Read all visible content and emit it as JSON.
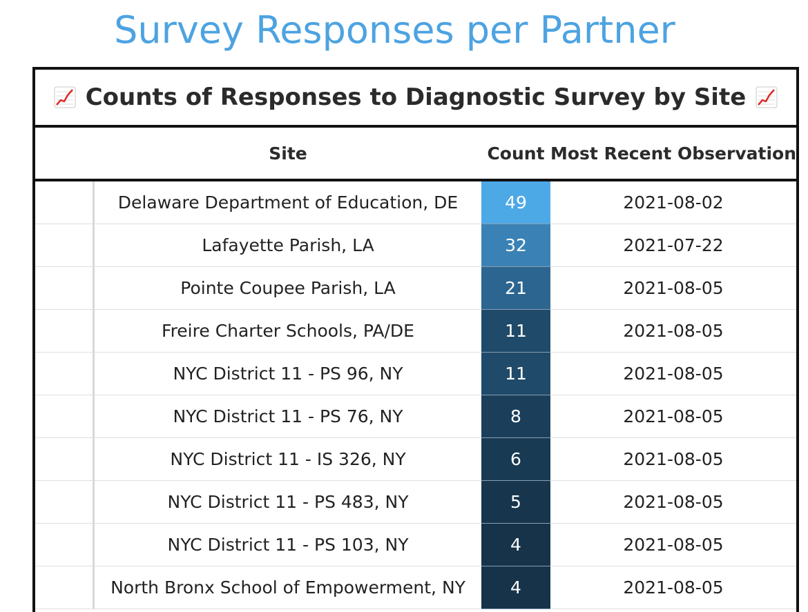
{
  "page": {
    "title": "Survey Responses per Partner"
  },
  "table": {
    "caption": "Counts of Responses to Diagnostic Survey by Site",
    "caption_icon": "chart-increasing-icon",
    "headers": {
      "site": "Site",
      "count": "Count",
      "date": "Most Recent Observation"
    },
    "rows": [
      {
        "site": "Delaware Department of Education, DE",
        "count": "49",
        "date": "2021-08-02",
        "color": "#4da8e6"
      },
      {
        "site": "Lafayette Parish, LA",
        "count": "32",
        "date": "2021-07-22",
        "color": "#3a82b5"
      },
      {
        "site": "Pointe Coupee Parish, LA",
        "count": "21",
        "date": "2021-08-05",
        "color": "#2c6690"
      },
      {
        "site": "Freire Charter Schools, PA/DE",
        "count": "11",
        "date": "2021-08-05",
        "color": "#1f4a69"
      },
      {
        "site": "NYC District 11 - PS 96, NY",
        "count": "11",
        "date": "2021-08-05",
        "color": "#1f4a69"
      },
      {
        "site": "NYC District 11 - PS 76, NY",
        "count": "8",
        "date": "2021-08-05",
        "color": "#1b3f5b"
      },
      {
        "site": "NYC District 11 - IS 326, NY",
        "count": "6",
        "date": "2021-08-05",
        "color": "#183a53"
      },
      {
        "site": "NYC District 11 - PS 483, NY",
        "count": "5",
        "date": "2021-08-05",
        "color": "#17364e"
      },
      {
        "site": "NYC District 11 - PS 103, NY",
        "count": "4",
        "date": "2021-08-05",
        "color": "#16334a"
      },
      {
        "site": "North Bronx School of Empowerment, NY",
        "count": "4",
        "date": "2021-08-05",
        "color": "#16334a"
      }
    ]
  }
}
